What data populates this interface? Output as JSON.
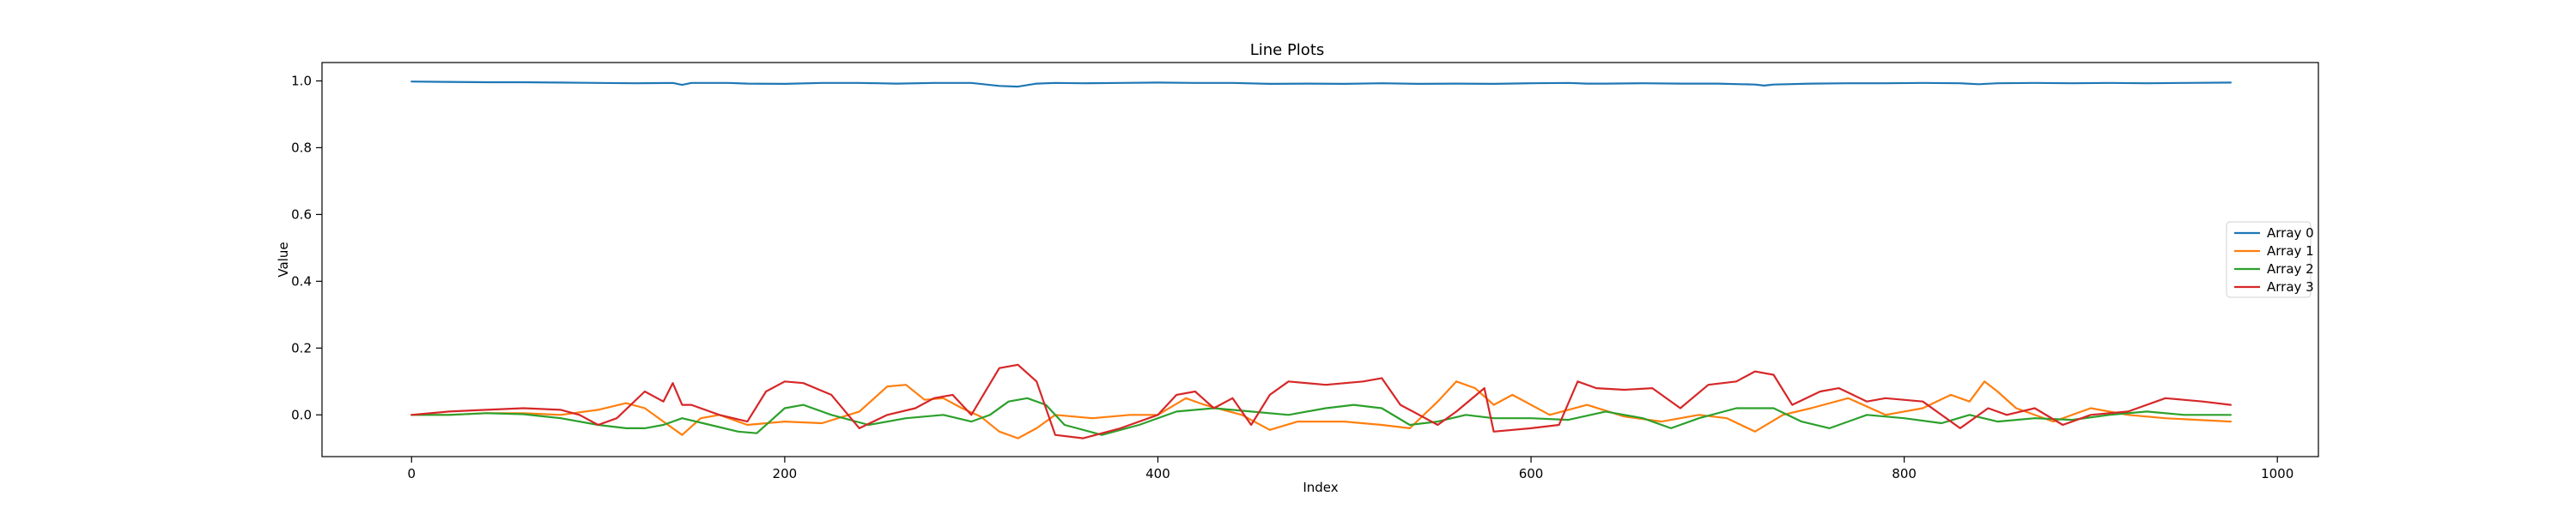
{
  "chart_data": {
    "type": "line",
    "title": "Line Plots",
    "xlabel": "Index",
    "ylabel": "Value",
    "xlim": [
      -48,
      1022
    ],
    "ylim": [
      -0.125,
      1.055
    ],
    "xticks": [
      0,
      200,
      400,
      600,
      800,
      1000
    ],
    "xtick_labels": [
      "0",
      "200",
      "400",
      "600",
      "800",
      "1000"
    ],
    "yticks": [
      0.0,
      0.2,
      0.4,
      0.6,
      0.8,
      1.0
    ],
    "ytick_labels": [
      "0.0",
      "0.2",
      "0.4",
      "0.6",
      "0.8",
      "1.0"
    ],
    "grid": false,
    "legend_position": "center-right",
    "series": [
      {
        "name": "Array 0",
        "color": "#1f77b4",
        "x": [
          0,
          20,
          40,
          60,
          80,
          100,
          120,
          140,
          145,
          150,
          170,
          180,
          200,
          220,
          240,
          260,
          280,
          300,
          315,
          325,
          335,
          345,
          360,
          380,
          400,
          420,
          440,
          460,
          480,
          500,
          520,
          540,
          560,
          580,
          600,
          620,
          630,
          640,
          660,
          680,
          700,
          720,
          725,
          730,
          750,
          770,
          790,
          810,
          830,
          840,
          850,
          870,
          890,
          910,
          930,
          950,
          975
        ],
        "y": [
          0.998,
          0.997,
          0.996,
          0.996,
          0.995,
          0.994,
          0.993,
          0.994,
          0.988,
          0.994,
          0.994,
          0.992,
          0.991,
          0.994,
          0.994,
          0.992,
          0.994,
          0.994,
          0.985,
          0.983,
          0.992,
          0.994,
          0.993,
          0.994,
          0.995,
          0.994,
          0.994,
          0.991,
          0.992,
          0.991,
          0.993,
          0.991,
          0.992,
          0.991,
          0.993,
          0.994,
          0.992,
          0.992,
          0.993,
          0.992,
          0.992,
          0.989,
          0.986,
          0.989,
          0.992,
          0.993,
          0.993,
          0.994,
          0.993,
          0.99,
          0.993,
          0.994,
          0.993,
          0.994,
          0.993,
          0.994,
          0.995
        ]
      },
      {
        "name": "Array 1",
        "color": "#ff7f0e",
        "x": [
          0,
          20,
          40,
          60,
          80,
          100,
          115,
          125,
          135,
          145,
          155,
          165,
          180,
          200,
          220,
          240,
          255,
          265,
          275,
          285,
          295,
          305,
          315,
          325,
          335,
          345,
          365,
          385,
          400,
          415,
          425,
          445,
          460,
          475,
          500,
          520,
          535,
          550,
          560,
          570,
          580,
          590,
          610,
          630,
          650,
          670,
          690,
          705,
          720,
          735,
          750,
          770,
          790,
          810,
          825,
          835,
          843,
          850,
          860,
          880,
          900,
          920,
          940,
          975
        ],
        "y": [
          0.0,
          0.0,
          0.005,
          0.005,
          0.0,
          0.015,
          0.035,
          0.02,
          -0.02,
          -0.06,
          -0.01,
          0.0,
          -0.03,
          -0.02,
          -0.025,
          0.01,
          0.085,
          0.09,
          0.045,
          0.05,
          0.02,
          -0.005,
          -0.05,
          -0.07,
          -0.04,
          0.0,
          -0.01,
          0.0,
          0.0,
          0.05,
          0.03,
          0.0,
          -0.045,
          -0.02,
          -0.02,
          -0.03,
          -0.04,
          0.04,
          0.1,
          0.08,
          0.03,
          0.06,
          0.0,
          0.03,
          -0.005,
          -0.02,
          0.0,
          -0.01,
          -0.05,
          0.0,
          0.02,
          0.05,
          0.0,
          0.02,
          0.06,
          0.04,
          0.1,
          0.07,
          0.02,
          -0.02,
          0.02,
          0.0,
          -0.01,
          -0.02
        ]
      },
      {
        "name": "Array 2",
        "color": "#2ca02c",
        "x": [
          0,
          20,
          40,
          60,
          80,
          100,
          115,
          125,
          135,
          145,
          160,
          175,
          185,
          200,
          210,
          225,
          245,
          265,
          285,
          300,
          310,
          320,
          330,
          340,
          350,
          370,
          390,
          410,
          430,
          450,
          470,
          490,
          505,
          520,
          535,
          550,
          565,
          580,
          600,
          620,
          640,
          660,
          675,
          690,
          710,
          730,
          745,
          760,
          780,
          800,
          820,
          835,
          850,
          870,
          890,
          910,
          930,
          950,
          975
        ],
        "y": [
          0.0,
          0.0,
          0.005,
          0.002,
          -0.01,
          -0.03,
          -0.04,
          -0.04,
          -0.03,
          -0.01,
          -0.03,
          -0.05,
          -0.055,
          0.02,
          0.03,
          0.0,
          -0.03,
          -0.01,
          0.0,
          -0.02,
          0.0,
          0.04,
          0.05,
          0.03,
          -0.03,
          -0.06,
          -0.03,
          0.01,
          0.02,
          0.01,
          0.0,
          0.02,
          0.03,
          0.02,
          -0.03,
          -0.02,
          0.0,
          -0.01,
          -0.01,
          -0.015,
          0.01,
          -0.01,
          -0.04,
          -0.01,
          0.02,
          0.02,
          -0.02,
          -0.04,
          0.0,
          -0.01,
          -0.025,
          0.0,
          -0.02,
          -0.01,
          -0.015,
          0.0,
          0.01,
          0.0,
          0.0
        ]
      },
      {
        "name": "Array 3",
        "color": "#d62728",
        "x": [
          0,
          20,
          40,
          60,
          80,
          90,
          100,
          110,
          125,
          135,
          140,
          145,
          150,
          165,
          180,
          190,
          200,
          210,
          225,
          240,
          255,
          270,
          280,
          290,
          300,
          315,
          325,
          335,
          345,
          360,
          380,
          400,
          410,
          420,
          430,
          440,
          450,
          460,
          470,
          490,
          510,
          520,
          530,
          540,
          550,
          560,
          575,
          580,
          600,
          615,
          625,
          635,
          650,
          665,
          680,
          695,
          710,
          720,
          730,
          740,
          755,
          765,
          780,
          790,
          810,
          830,
          845,
          855,
          870,
          885,
          900,
          920,
          940,
          960,
          975
        ],
        "y": [
          0.0,
          0.01,
          0.015,
          0.02,
          0.015,
          0.0,
          -0.03,
          -0.01,
          0.07,
          0.04,
          0.095,
          0.03,
          0.03,
          0.0,
          -0.02,
          0.07,
          0.1,
          0.095,
          0.06,
          -0.04,
          0.0,
          0.02,
          0.05,
          0.06,
          0.0,
          0.14,
          0.15,
          0.1,
          -0.06,
          -0.07,
          -0.04,
          0.0,
          0.06,
          0.07,
          0.02,
          0.05,
          -0.03,
          0.06,
          0.1,
          0.09,
          0.1,
          0.11,
          0.03,
          0.0,
          -0.03,
          0.01,
          0.08,
          -0.05,
          -0.04,
          -0.03,
          0.1,
          0.08,
          0.075,
          0.08,
          0.02,
          0.09,
          0.1,
          0.13,
          0.12,
          0.03,
          0.07,
          0.08,
          0.04,
          0.05,
          0.04,
          -0.04,
          0.02,
          0.0,
          0.02,
          -0.03,
          0.0,
          0.01,
          0.05,
          0.04,
          0.03
        ]
      }
    ]
  }
}
